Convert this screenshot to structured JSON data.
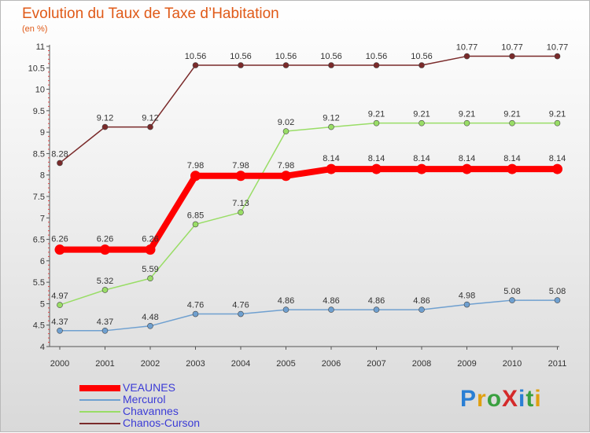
{
  "title": "Evolution du Taux de Taxe d’Habitation",
  "subtitle": "(en %)",
  "logo": {
    "text": "ProXiti",
    "colors": [
      "#2a7fd4",
      "#e0a010",
      "#3aa040",
      "#d42a2a",
      "#2a7fd4",
      "#3aa040",
      "#e0a010"
    ]
  },
  "chart_data": {
    "type": "line",
    "x": [
      "2000",
      "2001",
      "2002",
      "2003",
      "2004",
      "2005",
      "2006",
      "2007",
      "2008",
      "2009",
      "2010",
      "2011"
    ],
    "ylim": [
      4,
      11
    ],
    "yticks": [
      "4",
      "4.5",
      "5",
      "5.5",
      "6",
      "6.5",
      "7",
      "7.5",
      "8",
      "8.5",
      "9",
      "9.5",
      "10",
      "10.5",
      "11"
    ],
    "grid": false,
    "legend_position": "bottom-left",
    "series": [
      {
        "name": "VEAUNES",
        "color": "#ff0000",
        "width": 8,
        "values": [
          6.26,
          6.26,
          6.26,
          7.98,
          7.98,
          7.98,
          8.14,
          8.14,
          8.14,
          8.14,
          8.14,
          8.14
        ],
        "labels": [
          "6.26",
          "6.26",
          "6.26",
          "7.98",
          "7.98",
          "7.98",
          "8.14",
          "8.14",
          "8.14",
          "8.14",
          "8.14",
          "8.14"
        ]
      },
      {
        "name": "Mercurol",
        "color": "#6fa0d0",
        "width": 1.5,
        "values": [
          4.37,
          4.37,
          4.48,
          4.76,
          4.76,
          4.86,
          4.86,
          4.86,
          4.86,
          4.98,
          5.08,
          5.08
        ],
        "labels": [
          "4.37",
          "4.37",
          "4.48",
          "4.76",
          "4.76",
          "4.86",
          "4.86",
          "4.86",
          "4.86",
          "4.98",
          "5.08",
          "5.08"
        ]
      },
      {
        "name": "Chavannes",
        "color": "#99dd66",
        "width": 1.5,
        "values": [
          4.97,
          5.32,
          5.59,
          6.85,
          7.13,
          9.02,
          9.12,
          9.21,
          9.21,
          9.21,
          9.21,
          9.21
        ],
        "labels": [
          "4.97",
          "5.32",
          "5.59",
          "6.85",
          "7.13",
          "9.02",
          "9.12",
          "9.21",
          "9.21",
          "9.21",
          "9.21",
          "9.21"
        ]
      },
      {
        "name": "Chanos-Curson",
        "color": "#7a2a2a",
        "width": 1.5,
        "values": [
          8.28,
          9.12,
          9.12,
          10.56,
          10.56,
          10.56,
          10.56,
          10.56,
          10.56,
          10.77,
          10.77,
          10.77
        ],
        "labels": [
          "8.28",
          "9.12",
          "9.12",
          "10.56",
          "10.56",
          "10.56",
          "10.56",
          "10.56",
          "10.56",
          "10.77",
          "10.77",
          "10.77"
        ]
      }
    ]
  }
}
